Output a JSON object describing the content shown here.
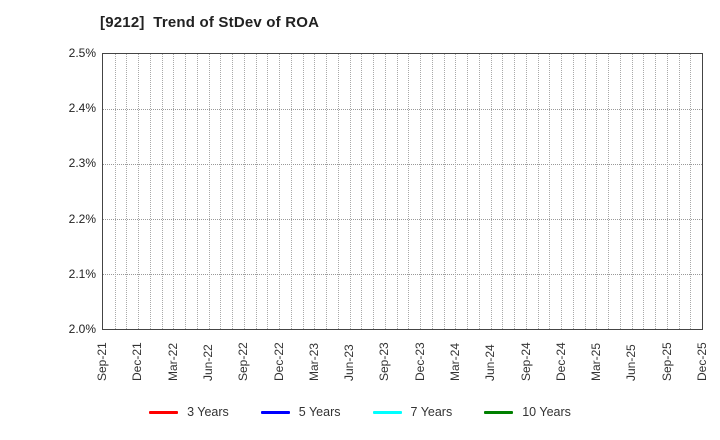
{
  "chart_data": {
    "type": "line",
    "title": "[9212]  Trend of StDev of ROA",
    "ticker": "9212",
    "xlabel": "",
    "ylabel": "",
    "ylim": [
      2.0,
      2.5
    ],
    "y_unit": "%",
    "y_tick_labels": [
      "2.0%",
      "2.1%",
      "2.2%",
      "2.3%",
      "2.4%",
      "2.5%"
    ],
    "x_tick_labels": [
      "Sep-21",
      "Dec-21",
      "Mar-22",
      "Jun-22",
      "Sep-22",
      "Dec-22",
      "Mar-23",
      "Jun-23",
      "Sep-23",
      "Dec-23",
      "Mar-24",
      "Jun-24",
      "Sep-24",
      "Dec-24",
      "Mar-25",
      "Jun-25",
      "Sep-25",
      "Dec-25"
    ],
    "months_total": 52,
    "grid": "dotted, horizontal at each 0.1% tick, vertical at each month",
    "legend_position": "bottom-center",
    "series": [
      {
        "name": "3 Years",
        "color": "#ff0000",
        "values": []
      },
      {
        "name": "5 Years",
        "color": "#0000ff",
        "values": []
      },
      {
        "name": "7 Years",
        "color": "#00ffff",
        "values": []
      },
      {
        "name": "10 Years",
        "color": "#008000",
        "values": []
      }
    ],
    "plotted_points": "none - plot area is empty within the visible y-range"
  },
  "colors": {
    "background": "#ffffff",
    "plot_border": "#444444",
    "gridline": "#999999",
    "title_text": "#222222",
    "axis_text": "#333333"
  }
}
